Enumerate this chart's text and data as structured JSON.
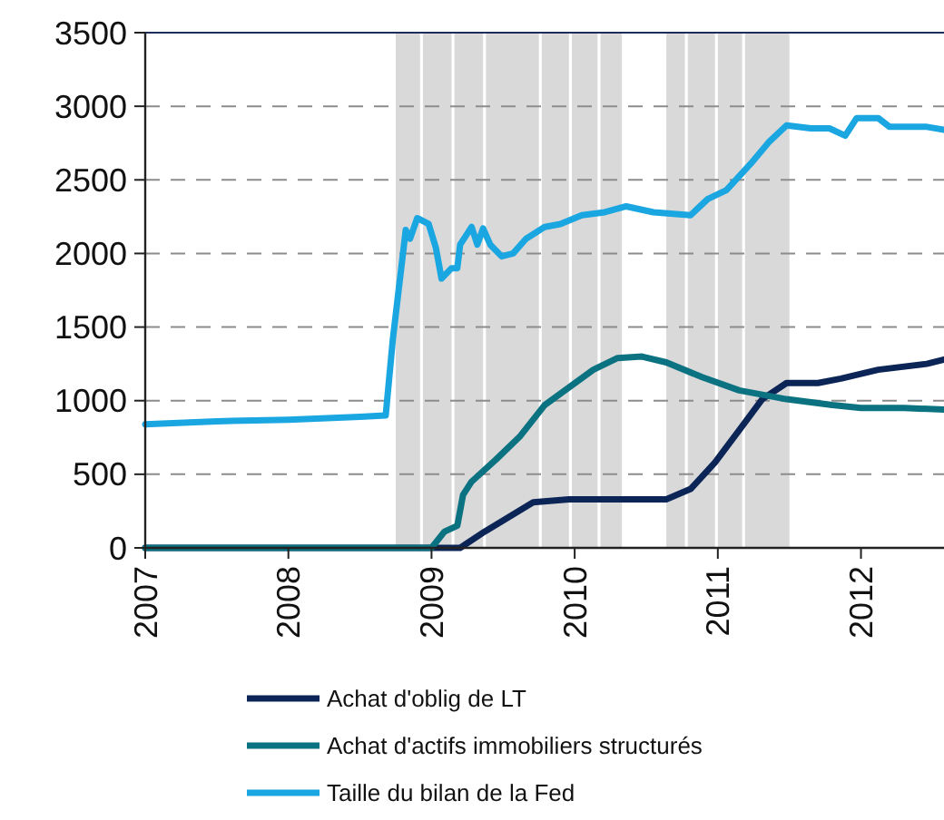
{
  "chart_data": {
    "type": "line",
    "xlim": [
      2007,
      2012.58
    ],
    "xticks": [
      2007,
      2008,
      2009,
      2010,
      2011,
      2012
    ],
    "ylim": [
      0,
      3500
    ],
    "yticks": [
      0,
      500,
      1000,
      1500,
      2000,
      2500,
      3000,
      3500
    ],
    "grid": "y",
    "legend": "bottom",
    "line_style": "solid",
    "marker": "none",
    "bands": [
      {
        "axis": "x",
        "from": 2008.75,
        "to": 2008.92,
        "color": "#d9d9d9"
      },
      {
        "axis": "x",
        "from": 2008.94,
        "to": 2009.14,
        "color": "#d9d9d9"
      },
      {
        "axis": "x",
        "from": 2009.16,
        "to": 2009.36,
        "color": "#d9d9d9"
      },
      {
        "axis": "x",
        "from": 2009.38,
        "to": 2009.75,
        "color": "#d9d9d9"
      },
      {
        "axis": "x",
        "from": 2009.77,
        "to": 2009.96,
        "color": "#d9d9d9"
      },
      {
        "axis": "x",
        "from": 2009.98,
        "to": 2010.16,
        "color": "#d9d9d9"
      },
      {
        "axis": "x",
        "from": 2010.18,
        "to": 2010.33,
        "color": "#d9d9d9"
      },
      {
        "axis": "x",
        "from": 2010.64,
        "to": 2010.77,
        "color": "#d9d9d9"
      },
      {
        "axis": "x",
        "from": 2010.79,
        "to": 2010.98,
        "color": "#d9d9d9"
      },
      {
        "axis": "x",
        "from": 2011.0,
        "to": 2011.17,
        "color": "#d9d9d9"
      },
      {
        "axis": "x",
        "from": 2011.19,
        "to": 2011.5,
        "color": "#d9d9d9"
      }
    ],
    "series": [
      {
        "name": "Achat d'oblig de LT",
        "color": "#0c2557",
        "x": [
          2007,
          2009.2,
          2009.37,
          2009.54,
          2009.71,
          2009.96,
          2010.21,
          2010.64,
          2010.81,
          2010.98,
          2011.15,
          2011.31,
          2011.48,
          2011.7,
          2011.86,
          2012.12,
          2012.46,
          2012.58
        ],
        "values": [
          0,
          0,
          110,
          210,
          310,
          330,
          330,
          330,
          400,
          580,
          800,
          1010,
          1120,
          1120,
          1150,
          1210,
          1250,
          1280
        ]
      },
      {
        "name": "Achat d'actifs immobiliers structurés",
        "color": "#0a7280",
        "x": [
          2007,
          2009.0,
          2009.09,
          2009.18,
          2009.22,
          2009.28,
          2009.45,
          2009.62,
          2009.79,
          2009.96,
          2010.13,
          2010.3,
          2010.47,
          2010.64,
          2010.89,
          2011.15,
          2011.48,
          2011.8,
          2012.0,
          2012.3,
          2012.58
        ],
        "values": [
          0,
          0,
          110,
          150,
          360,
          450,
          600,
          760,
          970,
          1090,
          1210,
          1290,
          1300,
          1260,
          1160,
          1070,
          1010,
          970,
          950,
          950,
          940
        ]
      },
      {
        "name": "Taille du bilan de la Fed",
        "color": "#1aa6e0",
        "x": [
          2007,
          2007.5,
          2008,
          2008.5,
          2008.68,
          2008.73,
          2008.82,
          2008.85,
          2008.9,
          2008.98,
          2009.03,
          2009.07,
          2009.14,
          2009.18,
          2009.2,
          2009.28,
          2009.32,
          2009.36,
          2009.41,
          2009.49,
          2009.57,
          2009.66,
          2009.79,
          2009.9,
          2010.05,
          2010.21,
          2010.36,
          2010.55,
          2010.81,
          2010.93,
          2011.06,
          2011.23,
          2011.36,
          2011.48,
          2011.65,
          2011.78,
          2011.89,
          2011.97,
          2012.12,
          2012.2,
          2012.46,
          2012.58
        ],
        "values": [
          840,
          860,
          870,
          890,
          900,
          1420,
          2160,
          2100,
          2240,
          2200,
          2040,
          1830,
          1900,
          1900,
          2060,
          2180,
          2060,
          2170,
          2060,
          1980,
          2000,
          2100,
          2180,
          2200,
          2260,
          2280,
          2320,
          2280,
          2260,
          2370,
          2430,
          2610,
          2760,
          2870,
          2850,
          2850,
          2800,
          2920,
          2920,
          2860,
          2860,
          2840
        ]
      }
    ]
  }
}
